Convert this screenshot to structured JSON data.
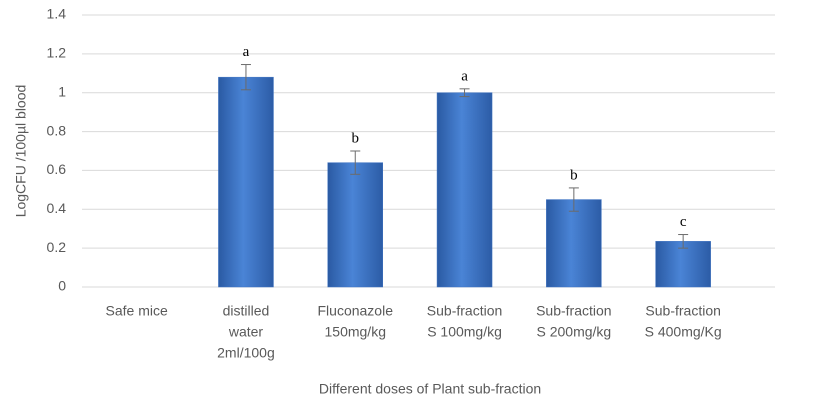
{
  "chart_data": {
    "type": "bar",
    "y_label": "LogCFU /100µl blood",
    "x_label": "Different doses of Plant sub-fraction",
    "categories": [
      [
        "Safe mice"
      ],
      [
        "distilled",
        "water",
        "2ml/100g"
      ],
      [
        "Fluconazole",
        "150mg/kg"
      ],
      [
        "Sub-fraction",
        "S 100mg/kg"
      ],
      [
        "Sub-fraction",
        "S 200mg/kg"
      ],
      [
        "Sub-fraction",
        "S 400mg/Kg"
      ]
    ],
    "values": [
      0,
      1.08,
      0.64,
      1.0,
      0.45,
      0.235
    ],
    "errors": [
      0,
      0.065,
      0.06,
      0.02,
      0.06,
      0.035
    ],
    "letters": [
      null,
      "a",
      "b",
      "a",
      "b",
      "c"
    ],
    "color": "#3f73c2",
    "ylim": [
      0,
      1.4
    ],
    "yticks": [
      0,
      0.2,
      0.4,
      0.6,
      0.8,
      1,
      1.2,
      1.4
    ],
    "grid": true
  }
}
